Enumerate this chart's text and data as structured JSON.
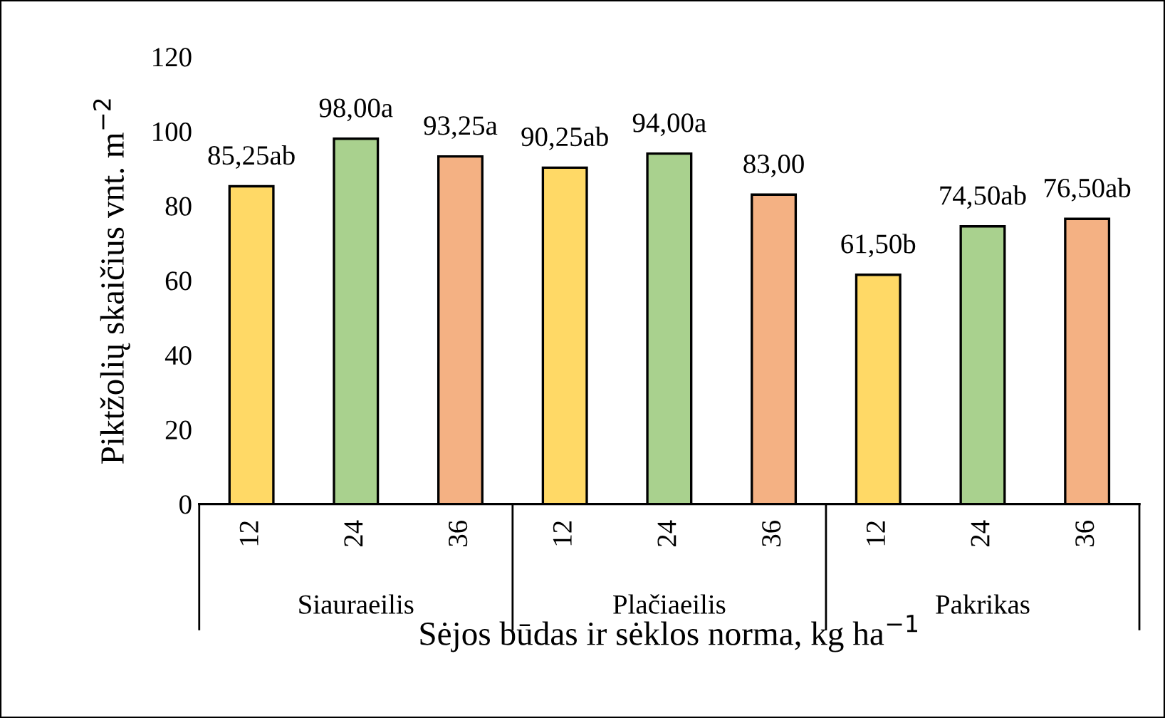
{
  "chart_data": {
    "type": "bar",
    "categories": [
      "12",
      "24",
      "36",
      "12",
      "24",
      "36",
      "12",
      "24",
      "36"
    ],
    "values": [
      85.25,
      98.0,
      93.25,
      90.25,
      94.0,
      83.0,
      61.5,
      74.5,
      76.5
    ],
    "colors": [
      "#ffd966",
      "#a9d18e",
      "#f4b183",
      "#ffd966",
      "#a9d18e",
      "#f4b183",
      "#ffd966",
      "#a9d18e",
      "#f4b183"
    ],
    "value_labels": [
      "85,25ab",
      "98,00a",
      "93,25a",
      "90,25ab",
      "94,00a",
      "83,00",
      "61,50b",
      "74,50ab",
      "76,50ab"
    ],
    "annotations": [
      "Siauraeilis",
      "Plačiaeilis",
      "Pakrikas"
    ],
    "xlabel": "Sėjos būdas ir sėklos norma, kg ha$^{−1}$",
    "ylabel": "Piktžolių skaičius vnt. m$^{−2}$",
    "ylim": [
      0,
      120
    ],
    "yticks": [
      0,
      20,
      40,
      60,
      80,
      100,
      120
    ],
    "grid": false,
    "legend": false
  }
}
